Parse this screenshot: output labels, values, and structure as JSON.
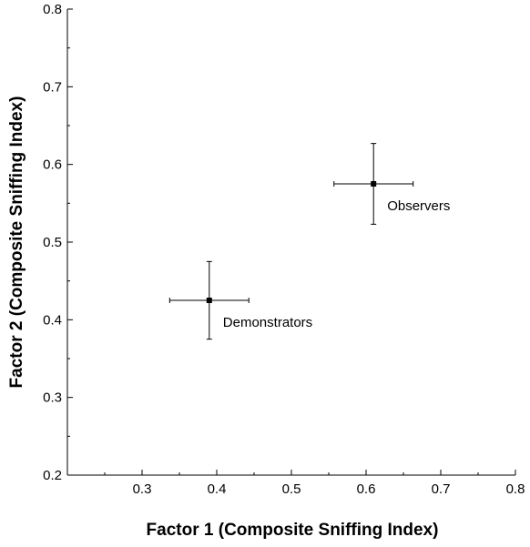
{
  "chart_data": {
    "type": "scatter",
    "xlabel": "Factor 1 (Composite Sniffing Index)",
    "ylabel": "Factor 2 (Composite Sniffing Index)",
    "xlim": [
      0.2,
      0.8
    ],
    "ylim": [
      0.2,
      0.8
    ],
    "x_ticks": [
      "0.3",
      "0.4",
      "0.5",
      "0.6",
      "0.7",
      "0.8"
    ],
    "y_ticks": [
      "0.2",
      "0.3",
      "0.4",
      "0.5",
      "0.6",
      "0.7",
      "0.8"
    ],
    "x_tick_values": [
      0.3,
      0.4,
      0.5,
      0.6,
      0.7,
      0.8
    ],
    "y_tick_values": [
      0.2,
      0.3,
      0.4,
      0.5,
      0.6,
      0.7,
      0.8
    ],
    "grid": false,
    "points": [
      {
        "label": "Demonstrators",
        "x": 0.39,
        "y": 0.425,
        "x_err": 0.053,
        "y_err": 0.05
      },
      {
        "label": "Observers",
        "x": 0.61,
        "y": 0.575,
        "x_err": 0.053,
        "y_err": 0.052
      }
    ]
  }
}
